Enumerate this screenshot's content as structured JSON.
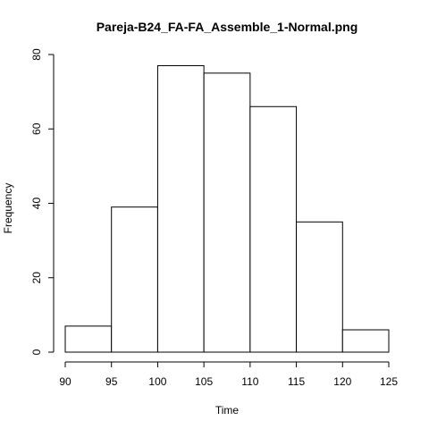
{
  "chart_data": {
    "type": "bar",
    "title": "Pareja-B24_FA-FA_Assemble_1-Normal.png",
    "xlabel": "Time",
    "ylabel": "Frequency",
    "bins": [
      {
        "from": 90,
        "to": 95,
        "value": 7
      },
      {
        "from": 95,
        "to": 100,
        "value": 39
      },
      {
        "from": 100,
        "to": 105,
        "value": 77
      },
      {
        "from": 105,
        "to": 110,
        "value": 75
      },
      {
        "from": 110,
        "to": 115,
        "value": 66
      },
      {
        "from": 115,
        "to": 120,
        "value": 35
      },
      {
        "from": 120,
        "to": 125,
        "value": 6
      }
    ],
    "xlim": [
      90,
      125
    ],
    "ylim": [
      0,
      80
    ],
    "x_ticks": [
      "90",
      "95",
      "100",
      "105",
      "110",
      "115",
      "120",
      "125"
    ],
    "y_ticks": [
      "0",
      "20",
      "40",
      "60",
      "80"
    ],
    "grid": false,
    "bar_fill": "#ffffff",
    "bar_stroke": "#000000"
  }
}
